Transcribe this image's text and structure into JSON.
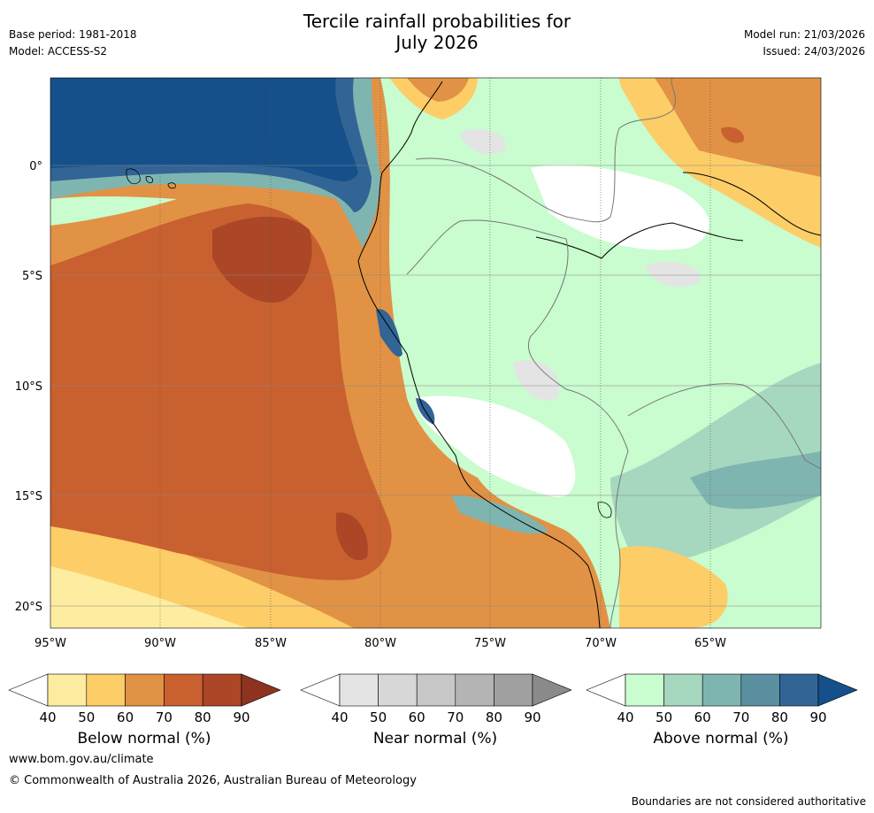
{
  "title_line1": "Tercile rainfall probabilities for",
  "title_line2": "July 2026",
  "base_period": "Base period: 1981-2018",
  "model": "Model: ACCESS-S2",
  "model_run": "Model run: 21/03/2026",
  "issued": "Issued: 24/03/2026",
  "longitude_ticks": [
    "95°W",
    "90°W",
    "85°W",
    "80°W",
    "75°W",
    "70°W",
    "65°W"
  ],
  "latitude_ticks": [
    "0°",
    "5°S",
    "10°S",
    "15°S",
    "20°S"
  ],
  "map_extent": {
    "lon_min": -95,
    "lon_max": -60,
    "lat_min": -21,
    "lat_max": 4
  },
  "colorbars": [
    {
      "label": "Below normal (%)",
      "ticks": [
        "40",
        "50",
        "60",
        "70",
        "80",
        "90"
      ],
      "colors": [
        "#ffffff",
        "#feeda0",
        "#fdcd68",
        "#e19245",
        "#c8612f",
        "#ab4626",
        "#8f3321"
      ]
    },
    {
      "label": "Near normal (%)",
      "ticks": [
        "40",
        "50",
        "60",
        "70",
        "80",
        "90"
      ],
      "colors": [
        "#ffffff",
        "#e4e4e4",
        "#d7d7d7",
        "#c7c7c7",
        "#b4b4b4",
        "#a0a0a0",
        "#8a8a8a"
      ]
    },
    {
      "label": "Above normal (%)",
      "ticks": [
        "40",
        "50",
        "60",
        "70",
        "80",
        "90"
      ],
      "colors": [
        "#ffffff",
        "#c9fcce",
        "#a6d8bf",
        "#7fb5b0",
        "#5a90a0",
        "#326496",
        "#15508a"
      ]
    }
  ],
  "footer_url": "www.bom.gov.au/climate",
  "footer_copyright": "© Commonwealth of Australia 2026, Australian Bureau of Meteorology",
  "footer_note": "Boundaries are not considered authoritative"
}
